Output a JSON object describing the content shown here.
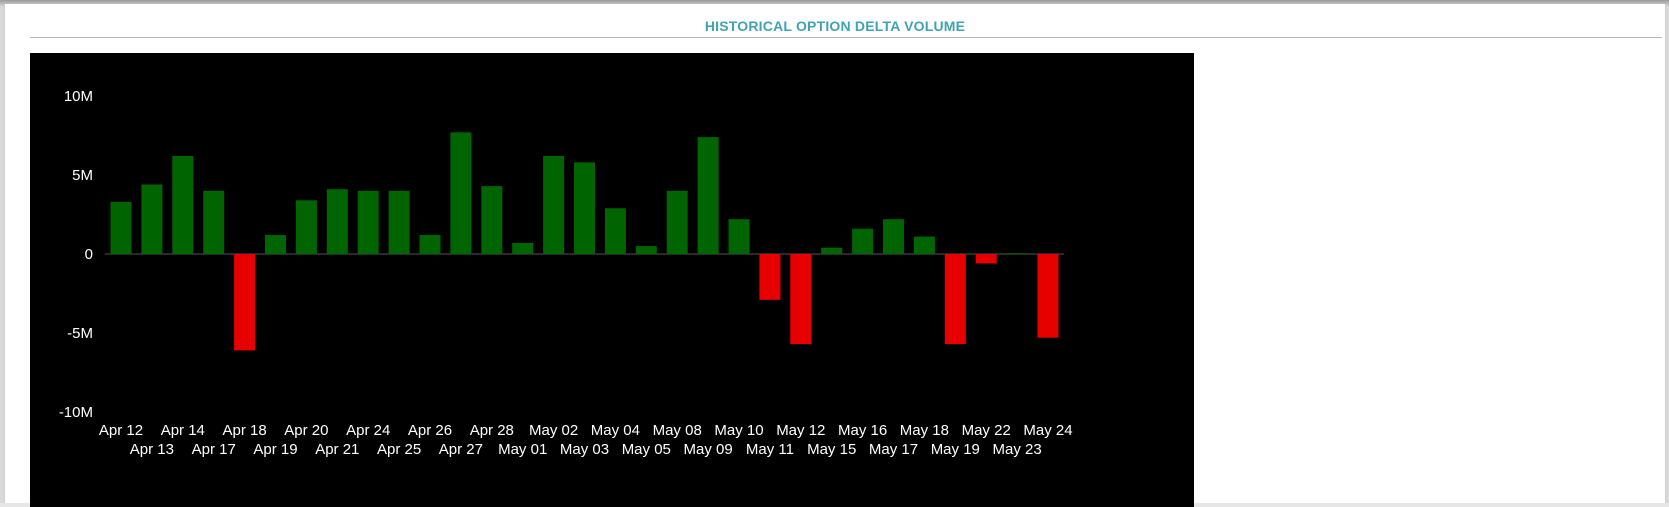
{
  "header": {
    "title": "HISTORICAL OPTION DELTA VOLUME"
  },
  "colors": {
    "positive": "#006400",
    "negative": "#e60000",
    "background": "#000000",
    "title": "#3fa3b3"
  },
  "chart_data": {
    "type": "bar",
    "title": "",
    "xlabel": "",
    "ylabel": "",
    "ylim": [
      -10000000,
      10000000
    ],
    "yticks": [
      {
        "value": 10000000,
        "label": "10M"
      },
      {
        "value": 5000000,
        "label": "5M"
      },
      {
        "value": 0,
        "label": "0"
      },
      {
        "value": -5000000,
        "label": "-5M"
      },
      {
        "value": -10000000,
        "label": "-10M"
      }
    ],
    "grid": false,
    "legend": "none",
    "categories": [
      "Apr 12",
      "Apr 13",
      "Apr 14",
      "Apr 17",
      "Apr 18",
      "Apr 19",
      "Apr 20",
      "Apr 21",
      "Apr 24",
      "Apr 25",
      "Apr 26",
      "Apr 27",
      "Apr 28",
      "May 01",
      "May 02",
      "May 03",
      "May 04",
      "May 05",
      "May 08",
      "May 09",
      "May 10",
      "May 11",
      "May 12",
      "May 15",
      "May 16",
      "May 17",
      "May 18",
      "May 19",
      "May 22",
      "May 23",
      "May 24"
    ],
    "values": [
      3300000,
      4400000,
      6200000,
      4000000,
      -6100000,
      1200000,
      3400000,
      4100000,
      4000000,
      4000000,
      1200000,
      7700000,
      4300000,
      700000,
      6200000,
      5800000,
      2900000,
      500000,
      4000000,
      7400000,
      2200000,
      -2900000,
      -5700000,
      400000,
      1600000,
      2200000,
      1100000,
      -5700000,
      -600000,
      50000,
      -5300000
    ]
  }
}
